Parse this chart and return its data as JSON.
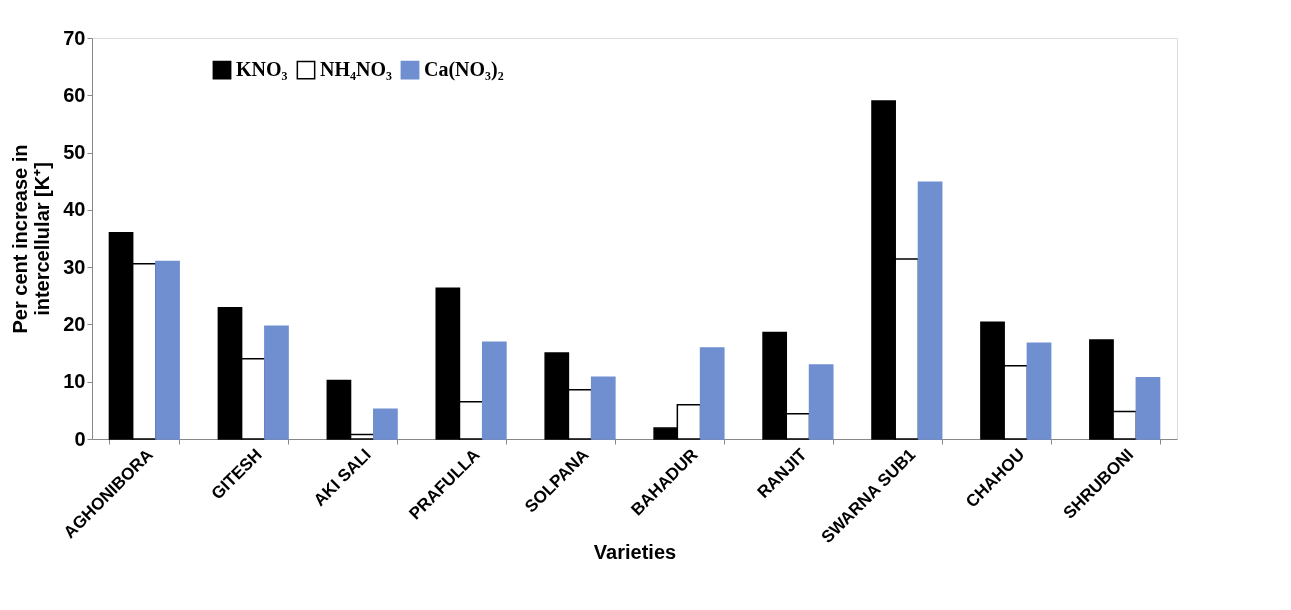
{
  "chart_data": {
    "type": "bar",
    "xlabel": "Varieties",
    "ylabel": "Per cent increase in intercellular [K⁺]",
    "categories": [
      "AGHONIBORA",
      "GITESH",
      "AKI SALI",
      "PRAFULLA",
      "SOLPANA",
      "BAHADUR",
      "RANJIT",
      "SWARNA SUB1",
      "CHAHOU",
      "SHRUBONI"
    ],
    "series": [
      {
        "name": "KNO₃",
        "color": "#000000",
        "values": [
          36,
          22.9,
          10.2,
          26.3,
          15,
          1.9,
          18.6,
          59,
          20.4,
          17.3
        ]
      },
      {
        "name": "NH₄NO₃",
        "color": "#ffffff",
        "values": [
          30.6,
          14,
          0.8,
          6.5,
          8.6,
          6,
          4.4,
          31.4,
          12.8,
          4.8
        ]
      },
      {
        "name": "Ca(NO₃)₂",
        "color": "#6f8fd0",
        "values": [
          31,
          19.7,
          5.2,
          16.9,
          10.8,
          15.9,
          12.9,
          44.8,
          16.7,
          10.7
        ]
      }
    ],
    "ylim": [
      0,
      70
    ],
    "yticks": [
      0,
      10,
      20,
      30,
      40,
      50,
      60,
      70
    ],
    "grid": false,
    "legend": "top left"
  }
}
